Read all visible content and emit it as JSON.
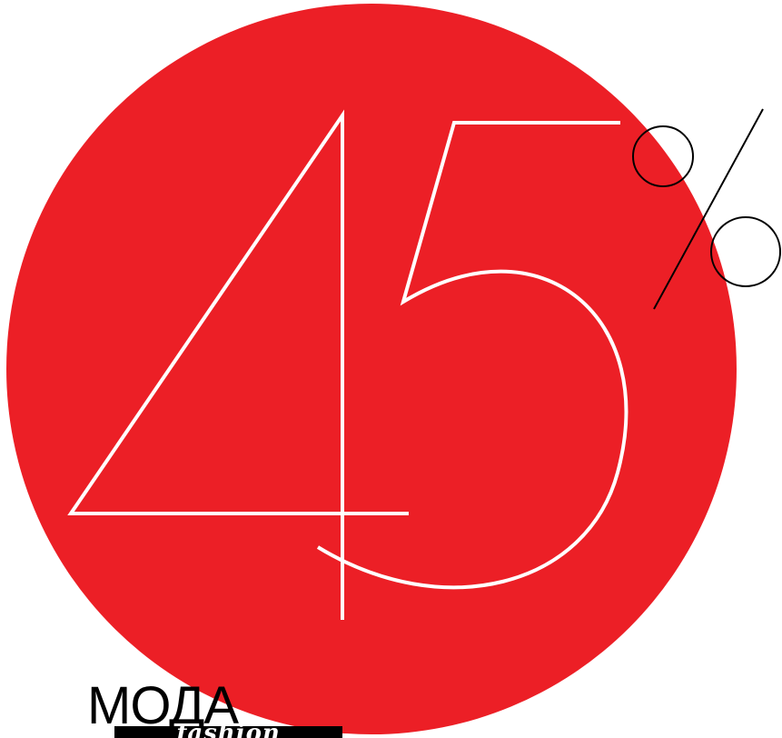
{
  "colors": {
    "background": "#ffffff",
    "circle": "#ec1f26",
    "digits_stroke": "#ffffff",
    "percent_stroke": "#000000",
    "wordmark": "#000000",
    "tagline_bar": "#000000",
    "tagline_text": "#ffffff"
  },
  "graphic": {
    "percentage": "45%"
  },
  "wordmark": {
    "text": "МОДА",
    "tagline": "fashion"
  }
}
